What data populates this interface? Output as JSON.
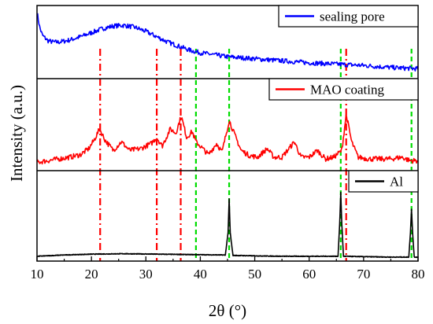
{
  "chart_data": {
    "type": "line",
    "xlabel": "2θ (°)",
    "ylabel": "Intensity (a.u.)",
    "xlim": [
      10,
      80
    ],
    "xticks": [
      "10",
      "20",
      "30",
      "40",
      "50",
      "60",
      "70",
      "80"
    ],
    "stacked_panels": true,
    "grid": false,
    "legend_placement": "top-right of each panel",
    "series": [
      {
        "name": "sealing pore",
        "color": "#0000ff",
        "panel": "top",
        "x": [
          10,
          10.5,
          11,
          12,
          13,
          14,
          16,
          18,
          20,
          22,
          24,
          26,
          28,
          30,
          32,
          34,
          36,
          38,
          40,
          45,
          50,
          55,
          60,
          65,
          70,
          75,
          80
        ],
        "y": [
          0.95,
          0.72,
          0.6,
          0.52,
          0.5,
          0.5,
          0.53,
          0.58,
          0.64,
          0.7,
          0.74,
          0.75,
          0.72,
          0.66,
          0.58,
          0.5,
          0.44,
          0.38,
          0.34,
          0.28,
          0.25,
          0.22,
          0.19,
          0.17,
          0.15,
          0.12,
          0.1
        ]
      },
      {
        "name": "MAO coating",
        "color": "#ff0000",
        "panel": "middle",
        "x": [
          10,
          12,
          14,
          16,
          18,
          19.5,
          20.5,
          21.5,
          22.5,
          24,
          25.5,
          27,
          29,
          31,
          32,
          33,
          34.5,
          35.5,
          36.5,
          37.5,
          38.5,
          39.2,
          40,
          41.5,
          43,
          44,
          45.3,
          46.2,
          47.5,
          49,
          50.5,
          52.3,
          53.5,
          55,
          57.3,
          58.5,
          60,
          61.5,
          63,
          64.5,
          66,
          66.8,
          67.8,
          69,
          71,
          73,
          75,
          77,
          78.5,
          80
        ],
        "y": [
          0.06,
          0.08,
          0.1,
          0.12,
          0.15,
          0.22,
          0.32,
          0.45,
          0.32,
          0.2,
          0.3,
          0.2,
          0.22,
          0.28,
          0.35,
          0.25,
          0.45,
          0.4,
          0.6,
          0.35,
          0.42,
          0.3,
          0.25,
          0.15,
          0.28,
          0.18,
          0.55,
          0.4,
          0.2,
          0.14,
          0.12,
          0.22,
          0.12,
          0.12,
          0.3,
          0.12,
          0.12,
          0.2,
          0.1,
          0.12,
          0.2,
          0.62,
          0.3,
          0.12,
          0.1,
          0.1,
          0.1,
          0.12,
          0.08,
          0.08
        ]
      },
      {
        "name": "Al",
        "color": "#000000",
        "panel": "bottom",
        "x": [
          10,
          15,
          20,
          26,
          32,
          38,
          44.6,
          45.1,
          45.3,
          45.5,
          46,
          50,
          55,
          60,
          65.3,
          65.6,
          65.8,
          66,
          66.3,
          70,
          75,
          78.3,
          78.6,
          78.8,
          79,
          79.3,
          80
        ],
        "y": [
          0.02,
          0.035,
          0.045,
          0.05,
          0.045,
          0.04,
          0.035,
          0.3,
          0.7,
          0.3,
          0.03,
          0.025,
          0.02,
          0.02,
          0.02,
          0.4,
          0.78,
          0.4,
          0.02,
          0.015,
          0.01,
          0.01,
          0.3,
          0.58,
          0.3,
          0.01,
          0.01
        ]
      }
    ],
    "reference_lines": [
      {
        "x": 21.6,
        "color": "#ff0000",
        "style": "dash-dot"
      },
      {
        "x": 32.0,
        "color": "#ff0000",
        "style": "dash-dot"
      },
      {
        "x": 36.4,
        "color": "#ff0000",
        "style": "dash-dot"
      },
      {
        "x": 39.2,
        "color": "#00dd00",
        "style": "dashed"
      },
      {
        "x": 45.3,
        "color": "#00dd00",
        "style": "dashed"
      },
      {
        "x": 65.8,
        "color": "#00dd00",
        "style": "dashed"
      },
      {
        "x": 66.8,
        "color": "#ff0000",
        "style": "dash-dot"
      },
      {
        "x": 78.8,
        "color": "#00dd00",
        "style": "dashed"
      }
    ]
  }
}
